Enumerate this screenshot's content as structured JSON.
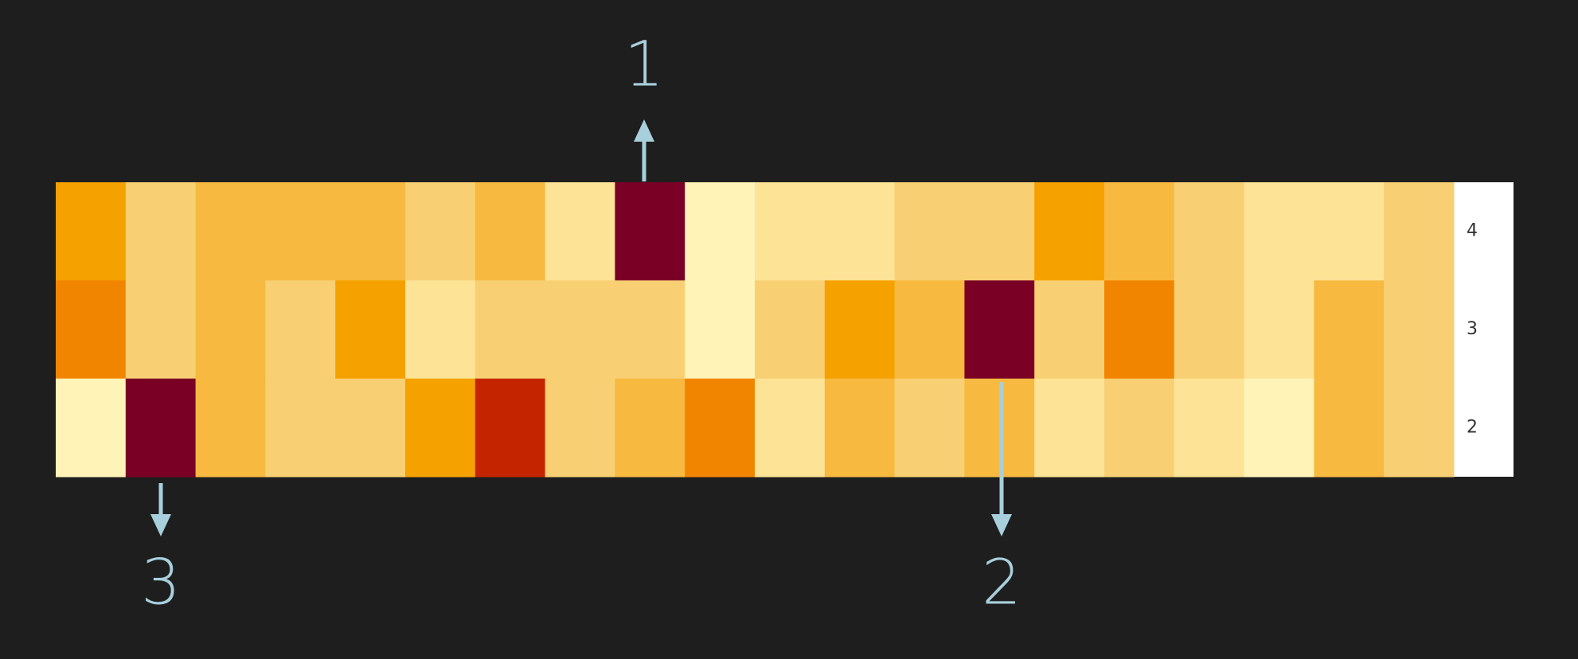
{
  "chart_data": {
    "type": "heatmap",
    "y_categories": [
      "4",
      "3",
      "2"
    ],
    "values": [
      [
        4,
        2,
        3,
        3,
        3,
        2,
        3,
        1,
        7,
        0,
        1,
        1,
        2,
        2,
        4,
        3,
        2,
        1,
        1,
        2
      ],
      [
        5,
        2,
        3,
        2,
        4,
        1,
        2,
        2,
        2,
        0,
        2,
        4,
        3,
        7,
        2,
        5,
        2,
        1,
        3,
        2
      ],
      [
        0,
        7,
        3,
        2,
        2,
        4,
        6,
        2,
        3,
        5,
        1,
        3,
        2,
        3,
        1,
        2,
        1,
        0,
        3,
        2
      ]
    ],
    "colors": [
      "#fff3b8",
      "#fce396",
      "#f8d073",
      "#f7b940",
      "#f5a100",
      "#f28500",
      "#c42500",
      "#7a0026"
    ],
    "annotations": [
      "1",
      "2",
      "3"
    ]
  }
}
